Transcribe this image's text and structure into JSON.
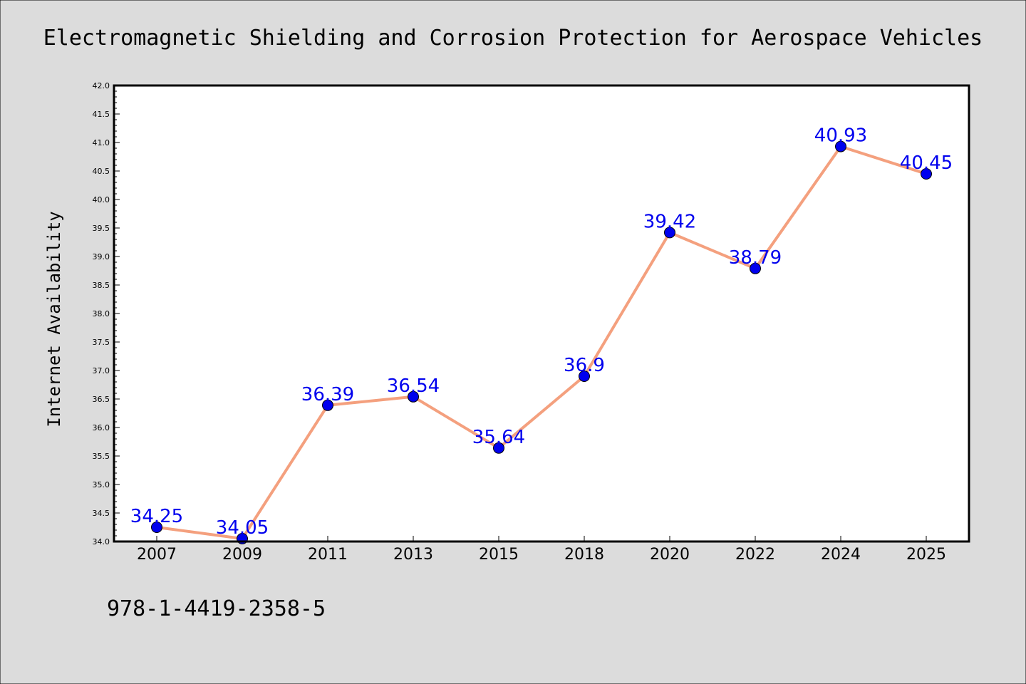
{
  "chart_data": {
    "type": "line",
    "title": "Electromagnetic Shielding and Corrosion Protection for Aerospace Vehicles",
    "xlabel": "",
    "ylabel": "Internet Availability",
    "categories": [
      "2007",
      "2009",
      "2011",
      "2013",
      "2015",
      "2018",
      "2020",
      "2022",
      "2024",
      "2025"
    ],
    "series": [
      {
        "values": [
          34.25,
          34.05,
          36.39,
          36.54,
          35.64,
          36.9,
          39.42,
          38.79,
          40.93,
          40.45
        ],
        "labels": [
          "34.25",
          "34.05",
          "36.39",
          "36.54",
          "35.64",
          "36.9",
          "39.42",
          "38.79",
          "40.93",
          "40.45"
        ],
        "line_color": "#f4a07e",
        "marker_color": "#0000ee",
        "label_color": "#0000ee"
      }
    ],
    "ylim": [
      34.0,
      42.0
    ],
    "yticks": [
      "34.0",
      "34.5",
      "35.0",
      "35.5",
      "36.0",
      "36.5",
      "37.0",
      "37.5",
      "38.0",
      "38.5",
      "39.0",
      "39.5",
      "40.0",
      "40.5",
      "41.0",
      "41.5",
      "42.0"
    ],
    "grid": false,
    "legend": "none"
  },
  "footer": {
    "isbn": "978-1-4419-2358-5"
  },
  "colors": {
    "background": "#dcdcdc",
    "plot_background": "#ffffff",
    "axes": "#000000"
  }
}
